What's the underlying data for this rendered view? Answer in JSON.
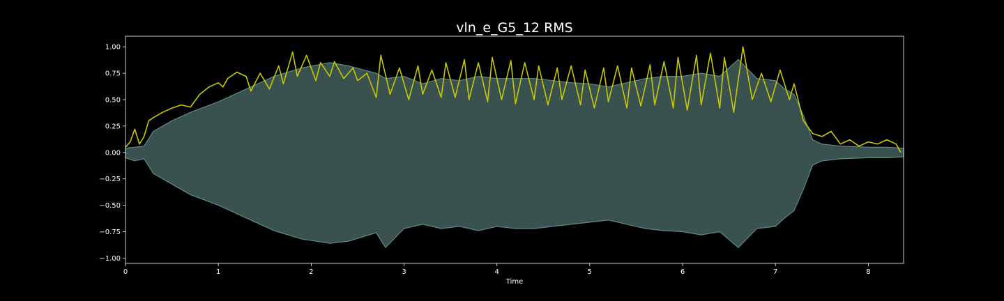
{
  "chart_data": {
    "type": "area",
    "title": "vln_e_G5_12 RMS",
    "xlabel": "Time",
    "ylabel": "",
    "xlim": [
      0,
      8.38
    ],
    "ylim": [
      -1.05,
      1.1
    ],
    "x_ticks": [
      0,
      1,
      2,
      3,
      4,
      5,
      6,
      7,
      8
    ],
    "x_tick_labels": [
      "0",
      "1",
      "2",
      "3",
      "4",
      "5",
      "6",
      "7",
      "8"
    ],
    "y_ticks": [
      1.0,
      0.75,
      0.5,
      0.25,
      0.0,
      -0.25,
      -0.5,
      -0.75,
      -1.0
    ],
    "y_tick_labels": [
      "1.00",
      "0.75",
      "0.50",
      "0.25",
      "0.00",
      "−0.25",
      "−0.50",
      "−0.75",
      "−1.00"
    ],
    "grid": false,
    "background": "#000000",
    "colors": {
      "waveform_fill": "#3a524f",
      "waveform_edge": "#5f8a84",
      "rms_line": "#c8c800",
      "axes": "#ffffff"
    },
    "series": [
      {
        "kind": "waveform_envelope",
        "x": [
          0,
          0.1,
          0.2,
          0.3,
          0.5,
          0.7,
          1.0,
          1.3,
          1.6,
          1.9,
          2.2,
          2.4,
          2.7,
          2.8,
          3.0,
          3.2,
          3.4,
          3.6,
          3.8,
          4.0,
          4.2,
          4.4,
          4.6,
          4.8,
          5.0,
          5.2,
          5.4,
          5.6,
          5.8,
          6.0,
          6.2,
          6.4,
          6.6,
          6.8,
          7.0,
          7.1,
          7.2,
          7.3,
          7.4,
          7.5,
          7.7,
          8.0,
          8.2,
          8.38
        ],
        "upper": [
          0.04,
          0.05,
          0.06,
          0.2,
          0.3,
          0.38,
          0.48,
          0.6,
          0.72,
          0.8,
          0.85,
          0.82,
          0.75,
          0.7,
          0.72,
          0.65,
          0.7,
          0.68,
          0.72,
          0.7,
          0.7,
          0.7,
          0.68,
          0.66,
          0.65,
          0.62,
          0.66,
          0.7,
          0.72,
          0.72,
          0.75,
          0.72,
          0.88,
          0.7,
          0.68,
          0.6,
          0.55,
          0.35,
          0.12,
          0.08,
          0.06,
          0.05,
          0.05,
          0.04
        ],
        "lower": [
          -0.05,
          -0.08,
          -0.06,
          -0.2,
          -0.3,
          -0.4,
          -0.5,
          -0.62,
          -0.74,
          -0.82,
          -0.86,
          -0.84,
          -0.76,
          -0.9,
          -0.72,
          -0.68,
          -0.72,
          -0.7,
          -0.74,
          -0.7,
          -0.72,
          -0.72,
          -0.7,
          -0.68,
          -0.66,
          -0.64,
          -0.68,
          -0.72,
          -0.74,
          -0.75,
          -0.78,
          -0.75,
          -0.9,
          -0.72,
          -0.7,
          -0.62,
          -0.55,
          -0.35,
          -0.12,
          -0.08,
          -0.06,
          -0.05,
          -0.05,
          -0.04
        ]
      },
      {
        "kind": "rms_line",
        "x": [
          0.0,
          0.05,
          0.1,
          0.15,
          0.2,
          0.25,
          0.3,
          0.4,
          0.5,
          0.6,
          0.7,
          0.8,
          0.9,
          1.0,
          1.05,
          1.1,
          1.2,
          1.3,
          1.35,
          1.45,
          1.55,
          1.65,
          1.7,
          1.8,
          1.85,
          1.95,
          2.05,
          2.1,
          2.2,
          2.25,
          2.35,
          2.45,
          2.5,
          2.6,
          2.7,
          2.75,
          2.85,
          2.95,
          3.05,
          3.15,
          3.2,
          3.3,
          3.4,
          3.45,
          3.55,
          3.65,
          3.7,
          3.8,
          3.9,
          3.95,
          4.05,
          4.15,
          4.2,
          4.3,
          4.4,
          4.45,
          4.55,
          4.65,
          4.7,
          4.8,
          4.9,
          4.95,
          5.05,
          5.15,
          5.2,
          5.3,
          5.4,
          5.45,
          5.55,
          5.65,
          5.7,
          5.8,
          5.9,
          5.95,
          6.05,
          6.15,
          6.2,
          6.3,
          6.4,
          6.45,
          6.55,
          6.65,
          6.75,
          6.85,
          6.95,
          7.05,
          7.15,
          7.2,
          7.3,
          7.4,
          7.5,
          7.6,
          7.7,
          7.8,
          7.9,
          8.0,
          8.1,
          8.2,
          8.3,
          8.35
        ],
        "y": [
          0.05,
          0.1,
          0.22,
          0.08,
          0.15,
          0.3,
          0.33,
          0.38,
          0.42,
          0.45,
          0.43,
          0.55,
          0.62,
          0.66,
          0.62,
          0.7,
          0.76,
          0.72,
          0.58,
          0.75,
          0.6,
          0.82,
          0.65,
          0.95,
          0.72,
          0.92,
          0.68,
          0.85,
          0.72,
          0.86,
          0.7,
          0.8,
          0.68,
          0.75,
          0.52,
          0.92,
          0.55,
          0.8,
          0.5,
          0.82,
          0.55,
          0.78,
          0.52,
          0.85,
          0.52,
          0.88,
          0.5,
          0.85,
          0.48,
          0.9,
          0.5,
          0.87,
          0.46,
          0.85,
          0.5,
          0.82,
          0.45,
          0.8,
          0.5,
          0.82,
          0.45,
          0.78,
          0.42,
          0.8,
          0.48,
          0.82,
          0.42,
          0.8,
          0.44,
          0.83,
          0.45,
          0.86,
          0.42,
          0.9,
          0.4,
          0.92,
          0.45,
          0.94,
          0.42,
          0.9,
          0.38,
          1.0,
          0.5,
          0.75,
          0.48,
          0.78,
          0.5,
          0.65,
          0.3,
          0.18,
          0.15,
          0.2,
          0.08,
          0.12,
          0.06,
          0.1,
          0.08,
          0.12,
          0.08,
          0.0
        ]
      }
    ]
  }
}
